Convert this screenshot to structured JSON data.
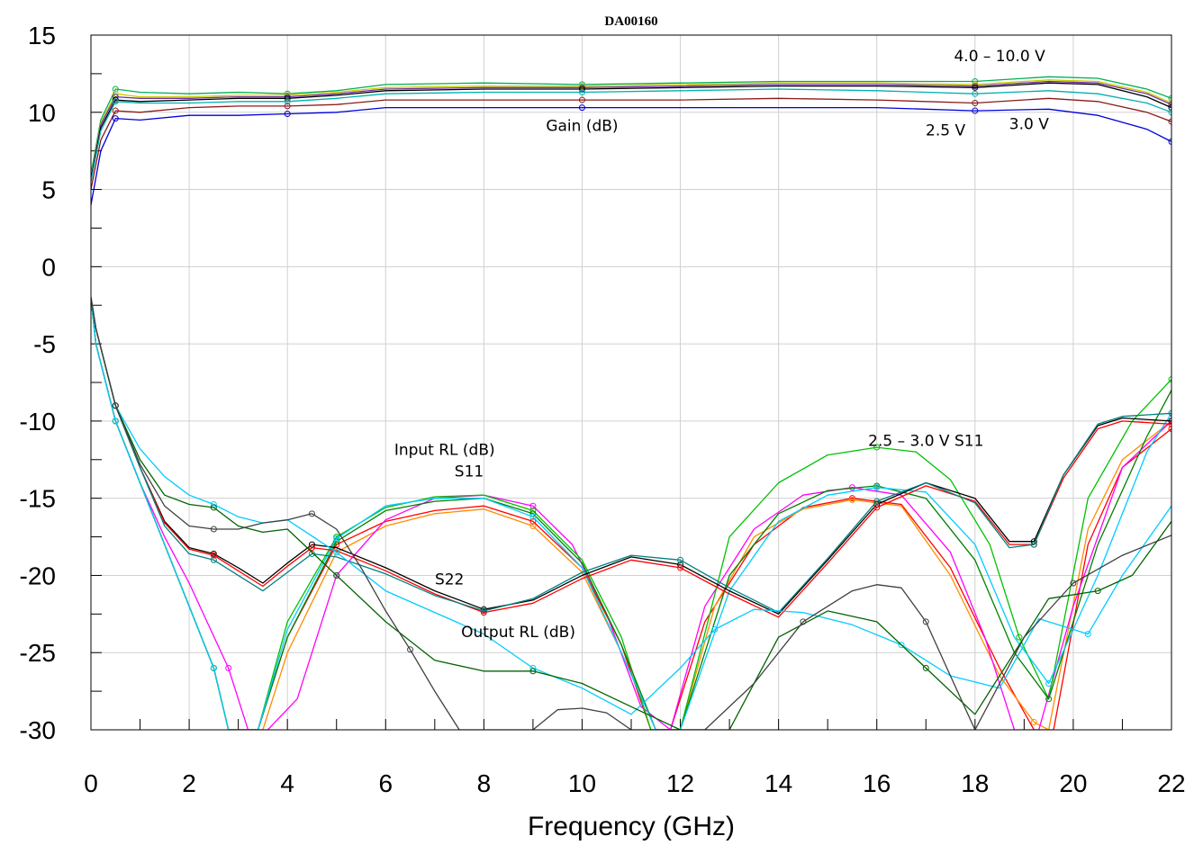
{
  "chart_data": {
    "type": "line",
    "title": "DA00160",
    "xlabel": "Frequency (GHz)",
    "ylabel": "",
    "xlim": [
      0,
      22
    ],
    "ylim": [
      -30,
      15
    ],
    "x_ticks": [
      "0",
      "2",
      "4",
      "6",
      "8",
      "10",
      "12",
      "14",
      "16",
      "18",
      "20",
      "22"
    ],
    "y_ticks": [
      "15",
      "10",
      "5",
      "0",
      "-5",
      "-10",
      "-15",
      "-20",
      "-25",
      "-30"
    ],
    "grid": true,
    "annotations": [
      {
        "text": "4.0 – 10.0 V",
        "x": 18.5,
        "y": 13.3
      },
      {
        "text": "Gain (dB)",
        "x": 10.0,
        "y": 8.8
      },
      {
        "text": "2.5 V",
        "x": 17.4,
        "y": 8.5
      },
      {
        "text": "3.0 V",
        "x": 19.1,
        "y": 8.9
      },
      {
        "text": "Input RL (dB)",
        "x": 7.2,
        "y": -12.2
      },
      {
        "text": "S11",
        "x": 7.7,
        "y": -13.6
      },
      {
        "text": "2.5 – 3.0 V S11",
        "x": 17.0,
        "y": -11.6
      },
      {
        "text": "S22",
        "x": 7.3,
        "y": -20.6
      },
      {
        "text": "Output RL (dB)",
        "x": 8.7,
        "y": -24.0
      }
    ],
    "series": [
      {
        "color": "#00b050",
        "x": [
          0,
          0.2,
          0.5,
          1,
          2,
          3,
          4,
          5,
          6,
          8,
          10,
          12,
          14,
          16,
          18,
          19.5,
          20.5,
          21.5,
          22
        ],
        "y": [
          6,
          9.5,
          11.5,
          11.3,
          11.2,
          11.3,
          11.2,
          11.4,
          11.8,
          11.9,
          11.8,
          11.9,
          12.0,
          12.0,
          12.0,
          12.3,
          12.2,
          11.5,
          10.9
        ]
      },
      {
        "color": "#cccc00",
        "x": [
          0,
          0.2,
          0.5,
          1,
          2,
          3,
          4,
          5,
          6,
          8,
          10,
          12,
          14,
          16,
          18,
          19.5,
          20.5,
          21.5,
          22
        ],
        "y": [
          5.8,
          9.3,
          11.2,
          11.0,
          11.0,
          11.1,
          11.1,
          11.3,
          11.6,
          11.7,
          11.7,
          11.8,
          11.9,
          11.9,
          11.8,
          12.1,
          12.0,
          11.3,
          10.6
        ]
      },
      {
        "color": "#7030a0",
        "x": [
          0,
          0.2,
          0.5,
          1,
          2,
          3,
          4,
          5,
          6,
          8,
          10,
          12,
          14,
          16,
          18,
          19.5,
          20.5,
          21.5,
          22
        ],
        "y": [
          5.7,
          9.2,
          11.0,
          10.9,
          10.9,
          11.0,
          11.0,
          11.2,
          11.5,
          11.6,
          11.6,
          11.7,
          11.8,
          11.8,
          11.7,
          12.0,
          11.9,
          11.2,
          10.5
        ]
      },
      {
        "color": "#000000",
        "x": [
          0,
          0.2,
          0.5,
          1,
          2,
          3,
          4,
          5,
          6,
          8,
          10,
          12,
          14,
          16,
          18,
          19.5,
          20.5,
          21.5,
          22
        ],
        "y": [
          5.6,
          9.0,
          10.8,
          10.7,
          10.8,
          10.9,
          10.9,
          11.1,
          11.4,
          11.5,
          11.5,
          11.6,
          11.7,
          11.7,
          11.6,
          11.9,
          11.8,
          11.0,
          10.3
        ]
      },
      {
        "color": "#00b0b0",
        "x": [
          0,
          0.2,
          0.5,
          1,
          2,
          3,
          4,
          5,
          6,
          8,
          10,
          12,
          14,
          16,
          18,
          19.5,
          20.5,
          21.5,
          22
        ],
        "y": [
          5.5,
          8.8,
          10.7,
          10.6,
          10.6,
          10.7,
          10.7,
          10.9,
          11.2,
          11.3,
          11.3,
          11.4,
          11.5,
          11.4,
          11.2,
          11.4,
          11.2,
          10.6,
          10.0
        ]
      },
      {
        "color": "#8b1a1a",
        "x": [
          0,
          0.2,
          0.5,
          1,
          2,
          3,
          4,
          5,
          6,
          8,
          10,
          12,
          14,
          16,
          18,
          19.5,
          20.5,
          21.5,
          22
        ],
        "y": [
          5.0,
          8.2,
          10.1,
          10.0,
          10.3,
          10.4,
          10.4,
          10.5,
          10.8,
          10.8,
          10.8,
          10.8,
          10.9,
          10.8,
          10.6,
          10.9,
          10.7,
          10.0,
          9.4
        ]
      },
      {
        "color": "#0000dd",
        "x": [
          0,
          0.2,
          0.5,
          1,
          2,
          3,
          4,
          5,
          6,
          8,
          10,
          12,
          14,
          16,
          18,
          19.5,
          20.5,
          21.5,
          22
        ],
        "y": [
          4.0,
          7.5,
          9.6,
          9.5,
          9.8,
          9.8,
          9.9,
          10.0,
          10.3,
          10.3,
          10.3,
          10.3,
          10.3,
          10.3,
          10.1,
          10.2,
          9.8,
          8.9,
          8.1
        ]
      },
      {
        "color": "#ff0000",
        "x": [
          0,
          0.1,
          0.5,
          1,
          1.5,
          2,
          2.5,
          2.8,
          3.4,
          4,
          5,
          6,
          7,
          8,
          9,
          10,
          10.8,
          11.4,
          11.8,
          12.5,
          13.5,
          14.5,
          15.5,
          16.5,
          17.5,
          18.5,
          19.2,
          19.6,
          20.3,
          21,
          22
        ],
        "y": [
          -2,
          -5,
          -10,
          -14,
          -18,
          -22,
          -26,
          -30,
          -30,
          -24,
          -18,
          -16.5,
          -15.8,
          -15.5,
          -16.5,
          -19.5,
          -24.5,
          -30,
          -30,
          -23,
          -18,
          -15.6,
          -15.0,
          -15.4,
          -19.5,
          -26,
          -30,
          -30,
          -18,
          -13,
          -10.5
        ]
      },
      {
        "color": "#ff8c00",
        "x": [
          0,
          0.1,
          0.5,
          1,
          1.5,
          2,
          2.5,
          2.8,
          3.5,
          4,
          5,
          6,
          7,
          8,
          9,
          10,
          10.8,
          11.5,
          12,
          12.7,
          13.5,
          14.5,
          15.5,
          16.5,
          17.5,
          18.5,
          19.2,
          19.5,
          20.3,
          21,
          22
        ],
        "y": [
          -2,
          -5,
          -10,
          -14,
          -18,
          -22,
          -26,
          -30,
          -30,
          -25,
          -18.5,
          -16.8,
          -16.0,
          -15.7,
          -16.8,
          -19.8,
          -25,
          -30,
          -30,
          -22,
          -17.5,
          -15.7,
          -15.1,
          -15.5,
          -20,
          -26.5,
          -29.5,
          -30,
          -17,
          -12.5,
          -10
        ]
      },
      {
        "color": "#ff00ff",
        "x": [
          0,
          0.1,
          0.5,
          1,
          1.5,
          2,
          2.8,
          3.2,
          3.6,
          4.2,
          5,
          6,
          7,
          8,
          9,
          9.8,
          10.5,
          11.2,
          11.8,
          12.5,
          13.5,
          14.5,
          15.5,
          16.5,
          17.5,
          18.2,
          18.8,
          19.3,
          20,
          21,
          22
        ],
        "y": [
          -2,
          -5,
          -10,
          -14,
          -17.5,
          -20.5,
          -26,
          -30,
          -30,
          -28,
          -20,
          -16.4,
          -15.0,
          -14.8,
          -15.5,
          -18.0,
          -22.5,
          -28.5,
          -30,
          -22,
          -17.0,
          -14.8,
          -14.3,
          -14.8,
          -18.5,
          -24,
          -30,
          -30,
          -22,
          -13,
          -10
        ]
      },
      {
        "color": "#00c000",
        "x": [
          0,
          0.1,
          0.5,
          1,
          1.5,
          2,
          2.5,
          2.8,
          3.4,
          4,
          5,
          6,
          7,
          8,
          9,
          10,
          10.8,
          11.4,
          12,
          13,
          14,
          15,
          16,
          16.8,
          17.5,
          18.3,
          18.9,
          19.5,
          20.3,
          21.2,
          22
        ],
        "y": [
          -2,
          -5,
          -10,
          -14,
          -18,
          -22,
          -26,
          -30,
          -30,
          -23,
          -17.5,
          -15.6,
          -14.9,
          -14.8,
          -15.8,
          -19.0,
          -24,
          -30,
          -30,
          -17.5,
          -14.0,
          -12.2,
          -11.7,
          -12.0,
          -13.8,
          -18,
          -24,
          -28,
          -15,
          -10,
          -7.3
        ]
      },
      {
        "color": "#008000",
        "x": [
          0,
          0.1,
          0.5,
          1,
          1.5,
          2,
          2.5,
          2.8,
          3.4,
          4,
          5,
          6,
          7,
          8,
          9,
          10,
          10.8,
          11.5,
          12,
          13,
          14,
          15,
          16,
          17,
          18,
          18.8,
          19.5,
          20.5,
          21.5,
          22
        ],
        "y": [
          -2,
          -5,
          -10,
          -14,
          -18,
          -22,
          -26,
          -30,
          -30,
          -24,
          -17.8,
          -15.8,
          -15.2,
          -15.0,
          -16.0,
          -19.2,
          -24.5,
          -30,
          -30,
          -20,
          -16.0,
          -14.5,
          -14.2,
          -15.0,
          -19,
          -25,
          -28,
          -18,
          -11,
          -8
        ]
      },
      {
        "color": "#00ccff",
        "x": [
          0,
          0.1,
          0.5,
          1,
          1.5,
          2,
          2.5,
          2.8,
          3.4,
          4,
          5,
          6,
          7,
          8,
          9,
          10,
          10.8,
          11.5,
          12,
          13,
          14,
          15,
          16,
          17,
          18,
          18.8,
          19.5,
          20.5,
          21.5,
          22
        ],
        "y": [
          -2,
          -5,
          -10,
          -14,
          -18,
          -22,
          -26,
          -30,
          -30,
          -23.5,
          -17.6,
          -15.5,
          -15.0,
          -15.0,
          -16.2,
          -19.5,
          -25,
          -30,
          -30,
          -21,
          -16.5,
          -14.8,
          -14.3,
          -14.6,
          -18,
          -24,
          -27,
          -20,
          -12,
          -9.5
        ]
      },
      {
        "color": "#000000",
        "x": [
          0,
          0.1,
          0.5,
          1,
          1.5,
          2,
          2.5,
          3,
          3.5,
          4,
          4.5,
          5,
          6,
          7,
          8,
          9,
          10,
          11,
          12,
          13,
          14,
          15,
          16,
          17,
          18,
          18.7,
          19.2,
          19.8,
          20.5,
          21,
          22
        ],
        "y": [
          -2,
          -4,
          -9,
          -13,
          -16.5,
          -18.2,
          -18.6,
          -19.5,
          -20.5,
          -19.2,
          -18.0,
          -18.2,
          -19.5,
          -21.0,
          -22.2,
          -21.6,
          -20.0,
          -18.8,
          -19.3,
          -21.0,
          -22.5,
          -19.0,
          -15.4,
          -14.0,
          -15.0,
          -17.8,
          -17.8,
          -13.5,
          -10.3,
          -9.8,
          -10.0
        ]
      },
      {
        "color": "#ff0000",
        "x": [
          0,
          0.1,
          0.5,
          1,
          1.5,
          2,
          2.5,
          3,
          3.5,
          4,
          4.5,
          5,
          6,
          7,
          8,
          9,
          10,
          11,
          12,
          13,
          14,
          15,
          16,
          17,
          18,
          18.7,
          19.2,
          19.8,
          20.5,
          21,
          22
        ],
        "y": [
          -2,
          -4,
          -9,
          -13,
          -16.6,
          -18.3,
          -18.7,
          -19.7,
          -20.7,
          -19.4,
          -18.2,
          -18.4,
          -19.7,
          -21.2,
          -22.4,
          -21.8,
          -20.2,
          -19.0,
          -19.5,
          -21.2,
          -22.7,
          -19.2,
          -15.6,
          -14.2,
          -15.2,
          -18.0,
          -18.0,
          -13.7,
          -10.5,
          -10.0,
          -10.2
        ]
      },
      {
        "color": "#008080",
        "x": [
          0,
          0.1,
          0.5,
          1,
          1.5,
          2,
          2.5,
          3,
          3.5,
          4,
          4.5,
          5,
          6,
          7,
          8,
          9,
          10,
          11,
          12,
          13,
          14,
          15,
          16,
          17,
          18,
          18.7,
          19.2,
          19.8,
          20.5,
          21,
          22
        ],
        "y": [
          -2,
          -4,
          -9,
          -13,
          -16.8,
          -18.6,
          -19.0,
          -20.0,
          -21.0,
          -19.8,
          -18.6,
          -18.8,
          -19.9,
          -21.3,
          -22.3,
          -21.5,
          -19.8,
          -18.7,
          -19.0,
          -20.8,
          -22.4,
          -18.9,
          -15.2,
          -14.0,
          -15.3,
          -18.2,
          -18.0,
          -13.5,
          -10.2,
          -9.7,
          -9.5
        ]
      },
      {
        "color": "#00ccff",
        "x": [
          0,
          0.1,
          0.5,
          1,
          1.5,
          2,
          2.5,
          3,
          3.5,
          4,
          5,
          6,
          7,
          8,
          9,
          10,
          11,
          12,
          12.7,
          13.5,
          14.5,
          15.5,
          16.5,
          17.5,
          18.5,
          19.3,
          20.3,
          21,
          22
        ],
        "y": [
          -2,
          -4,
          -9,
          -11.8,
          -13.6,
          -14.8,
          -15.4,
          -16.2,
          -16.6,
          -16.4,
          -18.5,
          -21.0,
          -22.4,
          -23.8,
          -26.0,
          -27.3,
          -29.0,
          -26.0,
          -23.5,
          -22.2,
          -22.4,
          -23.2,
          -24.5,
          -26.5,
          -27.3,
          -22.8,
          -23.8,
          -20.0,
          -15.5
        ]
      },
      {
        "color": "#006400",
        "x": [
          0,
          0.1,
          0.5,
          1,
          1.5,
          2,
          2.5,
          3,
          3.5,
          4,
          5,
          6,
          7,
          8,
          9,
          10,
          11,
          12,
          13,
          14,
          15,
          16,
          17,
          18,
          18.8,
          19.5,
          20.5,
          21.2,
          22
        ],
        "y": [
          -2,
          -4,
          -9,
          -12.5,
          -14.8,
          -15.4,
          -15.6,
          -16.8,
          -17.2,
          -17.0,
          -20.0,
          -23.0,
          -25.5,
          -26.2,
          -26.2,
          -27.0,
          -28.5,
          -30,
          -30,
          -24.0,
          -22.3,
          -23.0,
          -26.0,
          -29.0,
          -25.0,
          -21.5,
          -21.0,
          -20.0,
          -16.5
        ]
      },
      {
        "color": "#404040",
        "x": [
          0,
          0.1,
          0.5,
          1,
          1.5,
          2,
          2.5,
          3,
          3.5,
          4,
          4.5,
          5,
          5.5,
          6,
          6.5,
          7,
          7.5,
          8,
          9,
          9.5,
          10,
          10.5,
          11,
          12,
          12.5,
          13.5,
          14.5,
          15.5,
          16,
          16.5,
          17,
          17.5,
          18,
          19,
          20,
          21,
          22
        ],
        "y": [
          -2,
          -4,
          -9,
          -12.8,
          -15.5,
          -16.8,
          -17.0,
          -17.0,
          -16.6,
          -16.4,
          -16.0,
          -17.0,
          -19.5,
          -22.3,
          -24.8,
          -27.5,
          -30,
          -30,
          -30,
          -28.7,
          -28.6,
          -28.9,
          -30,
          -30,
          -30,
          -27.0,
          -23.0,
          -21.0,
          -20.6,
          -20.8,
          -23.0,
          -26.5,
          -30,
          -24.0,
          -20.5,
          -18.7,
          -17.4
        ]
      }
    ]
  }
}
